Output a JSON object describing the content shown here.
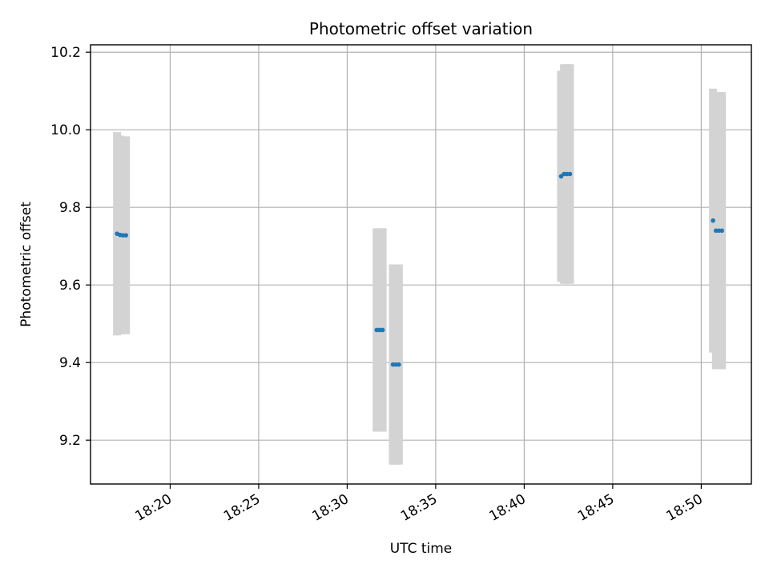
{
  "chart_data": {
    "type": "scatter",
    "title": "Photometric offset variation",
    "xlabel": "UTC time",
    "ylabel": "Photometric offset",
    "grid": true,
    "xlim": [
      "18:15:30",
      "18:52:50"
    ],
    "ylim": [
      9.087,
      10.219
    ],
    "x_ticks": [
      "18:20",
      "18:25",
      "18:30",
      "18:35",
      "18:40",
      "18:45",
      "18:50"
    ],
    "y_ticks": [
      "9.2",
      "9.4",
      "9.6",
      "9.8",
      "10.0",
      "10.2"
    ],
    "point_color": "#1f77b4",
    "errorbar_color": "#d3d3d3",
    "points": [
      {
        "x": "18:17:00",
        "y": 9.732,
        "yerr": 0.262
      },
      {
        "x": "18:17:10",
        "y": 9.729,
        "yerr": 0.256
      },
      {
        "x": "18:17:20",
        "y": 9.728,
        "yerr": 0.255
      },
      {
        "x": "18:17:30",
        "y": 9.728,
        "yerr": 0.255
      },
      {
        "x": "18:31:40",
        "y": 9.484,
        "yerr": 0.262
      },
      {
        "x": "18:31:50",
        "y": 9.484,
        "yerr": 0.262
      },
      {
        "x": "18:32:00",
        "y": 9.484,
        "yerr": 0.262
      },
      {
        "x": "18:32:35",
        "y": 9.395,
        "yerr": 0.258
      },
      {
        "x": "18:32:45",
        "y": 9.395,
        "yerr": 0.258
      },
      {
        "x": "18:32:55",
        "y": 9.395,
        "yerr": 0.258
      },
      {
        "x": "18:42:05",
        "y": 9.88,
        "yerr": 0.272
      },
      {
        "x": "18:42:15",
        "y": 9.886,
        "yerr": 0.283
      },
      {
        "x": "18:42:25",
        "y": 9.886,
        "yerr": 0.283
      },
      {
        "x": "18:42:35",
        "y": 9.886,
        "yerr": 0.283
      },
      {
        "x": "18:50:40",
        "y": 9.766,
        "yerr": 0.34
      },
      {
        "x": "18:50:50",
        "y": 9.74,
        "yerr": 0.357
      },
      {
        "x": "18:51:00",
        "y": 9.74,
        "yerr": 0.357
      },
      {
        "x": "18:51:10",
        "y": 9.74,
        "yerr": 0.357
      }
    ]
  }
}
